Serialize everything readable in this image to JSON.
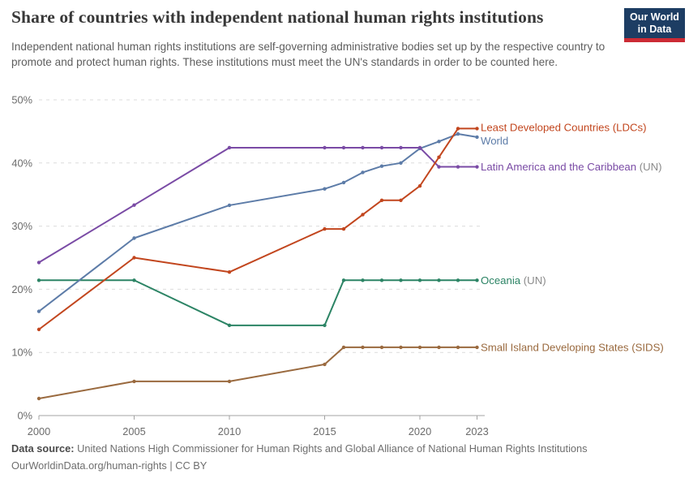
{
  "header": {
    "title": "Share of countries with independent national human rights institutions",
    "subtitle": "Independent national human rights institutions are self-governing administrative bodies set up by the respective country to promote and protect human rights. These institutions must meet the UN's standards in order to be counted here.",
    "logo": {
      "line1": "Our World",
      "line2": "in Data",
      "bg_color": "#1d3d63",
      "stripe_color": "#cc2b35"
    }
  },
  "chart_data": {
    "type": "line",
    "title": "Share of countries with independent national human rights institutions",
    "xlabel": "",
    "ylabel": "",
    "grid": true,
    "legend_position": "right-of-line-end",
    "ylim": [
      0,
      50
    ],
    "xlim": [
      2000,
      2023
    ],
    "yticks": [
      0,
      10,
      20,
      30,
      40,
      50
    ],
    "ytick_labels": [
      "0%",
      "10%",
      "20%",
      "30%",
      "40%",
      "50%"
    ],
    "xticks": [
      2000,
      2005,
      2010,
      2015,
      2020,
      2023
    ],
    "xtick_labels": [
      "2000",
      "2005",
      "2010",
      "2015",
      "2020",
      "2023"
    ],
    "x": [
      2000,
      2005,
      2010,
      2015,
      2016,
      2017,
      2018,
      2019,
      2020,
      2021,
      2022,
      2023
    ],
    "draw_order": [
      "oceania",
      "sids",
      "world",
      "lac",
      "ldcs"
    ],
    "series": [
      {
        "id": "ldcs",
        "name": "Least Developed Countries (LDCs)",
        "suffix": "",
        "color": "#c2461e",
        "values": [
          13.64,
          25.0,
          22.73,
          29.55,
          29.55,
          31.82,
          34.09,
          34.09,
          36.36,
          40.91,
          45.45,
          45.45
        ],
        "label_pct": 45.6
      },
      {
        "id": "world",
        "name": "World",
        "suffix": "",
        "color": "#5d7ca8",
        "values": [
          16.5,
          28.1,
          33.3,
          35.9,
          36.9,
          38.5,
          39.5,
          40.0,
          42.3,
          43.4,
          44.6,
          44.1
        ],
        "label_pct": 43.5
      },
      {
        "id": "lac",
        "name": "Latin America and the Caribbean",
        "suffix": " (UN)",
        "color": "#7a4ba5",
        "values": [
          24.24,
          33.33,
          42.42,
          42.42,
          42.42,
          42.42,
          42.42,
          42.42,
          42.42,
          39.39,
          39.39,
          39.39
        ],
        "label_pct": 39.39
      },
      {
        "id": "oceania",
        "name": "Oceania",
        "suffix": " (UN)",
        "color": "#2c8465",
        "values": [
          21.43,
          21.43,
          14.29,
          14.29,
          21.43,
          21.43,
          21.43,
          21.43,
          21.43,
          21.43,
          21.43,
          21.43
        ],
        "label_pct": 21.43
      },
      {
        "id": "sids",
        "name": "Small Island Developing States (SIDS)",
        "suffix": "",
        "color": "#9a6a3f",
        "values": [
          2.7,
          5.41,
          5.41,
          8.11,
          10.81,
          10.81,
          10.81,
          10.81,
          10.81,
          10.81,
          10.81,
          10.81
        ],
        "label_pct": 10.81
      }
    ],
    "suffix_color": "#8a8a8a",
    "grid_color": "#dcdcdc",
    "axis_color": "#a3a3a3",
    "tick_label_color": "#6b6b6b"
  },
  "footer": {
    "source_label": "Data source:",
    "source_text": " United Nations High Commissioner for Human Rights and Global Alliance of National Human Rights Institutions",
    "link_line": "OurWorldinData.org/human-rights | CC BY"
  }
}
